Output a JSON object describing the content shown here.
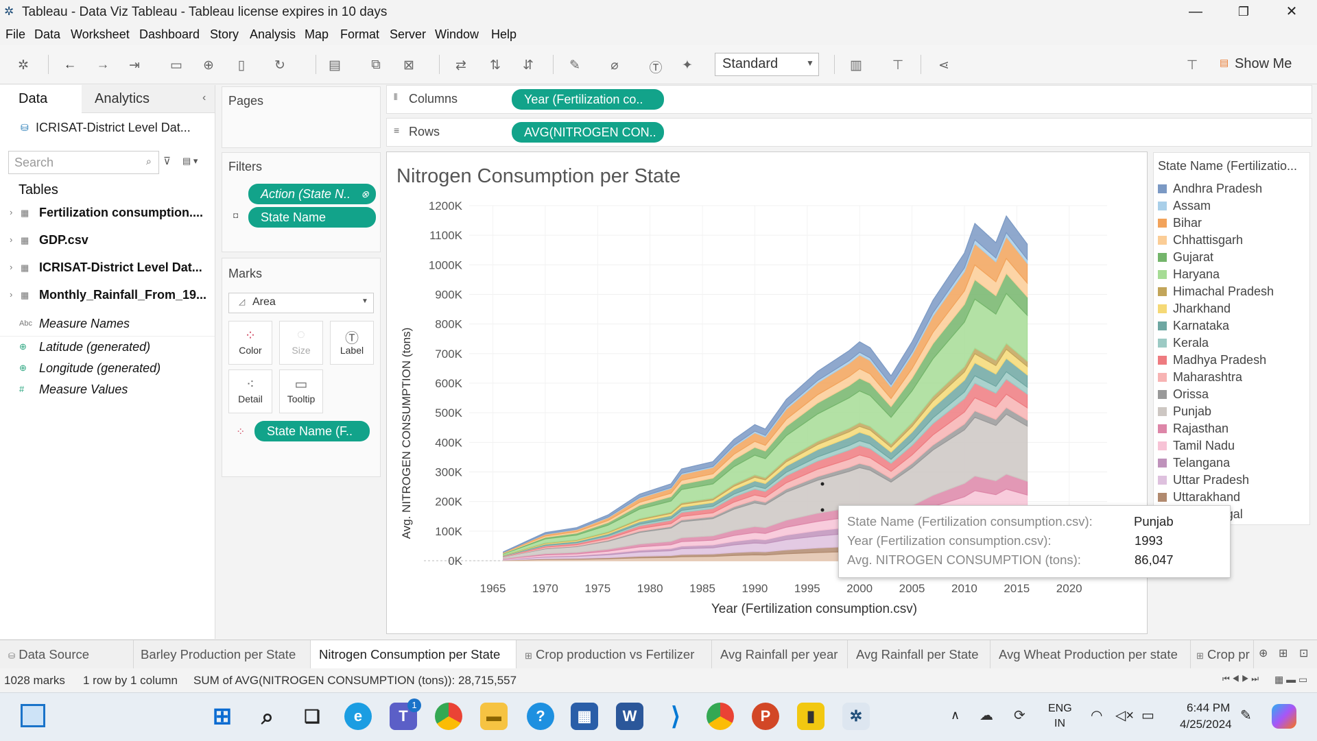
{
  "window": {
    "title": "Tableau - Data Viz Tableau - Tableau license expires in 10 days"
  },
  "menu": [
    "File",
    "Data",
    "Worksheet",
    "Dashboard",
    "Story",
    "Analysis",
    "Map",
    "Format",
    "Server",
    "Window",
    "Help"
  ],
  "toolbar": {
    "fit_select": "Standard",
    "show_me": "Show Me"
  },
  "data_pane": {
    "tab_data": "Data",
    "tab_analytics": "Analytics",
    "datasource": "ICRISAT-District Level Dat...",
    "search_placeholder": "Search",
    "tables_header": "Tables",
    "tables": [
      "Fertilization consumption....",
      "GDP.csv",
      "ICRISAT-District Level Dat...",
      "Monthly_Rainfall_From_19..."
    ],
    "fields": [
      {
        "icon": "Abc",
        "name": "Measure Names"
      },
      {
        "icon": "⊕",
        "name": "Latitude (generated)"
      },
      {
        "icon": "⊕",
        "name": "Longitude (generated)"
      },
      {
        "icon": "#",
        "name": "Measure Values"
      }
    ]
  },
  "pages": {
    "title": "Pages"
  },
  "filters": {
    "title": "Filters",
    "items": [
      "Action (State N..",
      "State Name"
    ]
  },
  "marks": {
    "title": "Marks",
    "type": "Area",
    "buttons": [
      "Color",
      "Size",
      "Label",
      "Detail",
      "Tooltip"
    ],
    "pill": "State Name (F.."
  },
  "shelves": {
    "columns_label": "Columns",
    "columns_pill": "Year (Fertilization co..",
    "rows_label": "Rows",
    "rows_pill": "AVG(NITROGEN CON.."
  },
  "chart_data": {
    "type": "area",
    "title": "Nitrogen Consumption per State",
    "xlabel": "Year (Fertilization consumption.csv)",
    "ylabel": "Avg. NITROGEN CONSUMPTION (tons)",
    "xlim": [
      1963,
      2021
    ],
    "ylim": [
      0,
      1200000
    ],
    "x_ticks": [
      "1965",
      "1970",
      "1975",
      "1980",
      "1985",
      "1990",
      "1995",
      "2000",
      "2005",
      "2010",
      "2015",
      "2020"
    ],
    "y_ticks": [
      "0K",
      "100K",
      "200K",
      "300K",
      "400K",
      "500K",
      "600K",
      "700K",
      "800K",
      "900K",
      "1000K",
      "1100K",
      "1200K"
    ],
    "stacked_total": [
      [
        1966,
        30000
      ],
      [
        1970,
        95000
      ],
      [
        1973,
        112000
      ],
      [
        1976,
        155000
      ],
      [
        1979,
        225000
      ],
      [
        1982,
        260000
      ],
      [
        1983,
        310000
      ],
      [
        1986,
        335000
      ],
      [
        1988,
        410000
      ],
      [
        1990,
        460000
      ],
      [
        1991,
        445000
      ],
      [
        1993,
        545000
      ],
      [
        1996,
        640000
      ],
      [
        1999,
        710000
      ],
      [
        2000,
        740000
      ],
      [
        2001,
        720000
      ],
      [
        2003,
        625000
      ],
      [
        2005,
        740000
      ],
      [
        2007,
        880000
      ],
      [
        2010,
        1040000
      ],
      [
        2011,
        1140000
      ],
      [
        2013,
        1075000
      ],
      [
        2014,
        1165000
      ],
      [
        2016,
        1070000
      ]
    ]
  },
  "legend": {
    "title": "State Name (Fertilizatio...",
    "items": [
      {
        "name": "Andhra Pradesh",
        "color": "#7b99c4"
      },
      {
        "name": "Assam",
        "color": "#a9cfe9"
      },
      {
        "name": "Bihar",
        "color": "#f2a35b"
      },
      {
        "name": "Chhattisgarh",
        "color": "#fbcd96"
      },
      {
        "name": "Gujarat",
        "color": "#74b56b"
      },
      {
        "name": "Haryana",
        "color": "#a6dc95"
      },
      {
        "name": "Himachal Pradesh",
        "color": "#c2a55a"
      },
      {
        "name": "Jharkhand",
        "color": "#f5d976"
      },
      {
        "name": "Karnataka",
        "color": "#6ea7a2"
      },
      {
        "name": "Kerala",
        "color": "#9ccac4"
      },
      {
        "name": "Madhya Pradesh",
        "color": "#ee7b80"
      },
      {
        "name": "Maharashtra",
        "color": "#f7b3b3"
      },
      {
        "name": "Orissa",
        "color": "#999999"
      },
      {
        "name": "Punjab",
        "color": "#cdc7c3"
      },
      {
        "name": "Rajasthan",
        "color": "#dd86a8"
      },
      {
        "name": "Tamil Nadu",
        "color": "#f7c3d6"
      },
      {
        "name": "Telangana",
        "color": "#bf92bb"
      },
      {
        "name": "Uttar Pradesh",
        "color": "#dec1de"
      },
      {
        "name": "Uttarakhand",
        "color": "#b18a6f"
      },
      {
        "name": "West Bengal",
        "color": "#e2c2ab"
      }
    ]
  },
  "tooltip": {
    "rows": [
      {
        "key": "State Name (Fertilization consumption.csv):",
        "value": "Punjab"
      },
      {
        "key": "Year (Fertilization consumption.csv):",
        "value": "1993"
      },
      {
        "key": "Avg. NITROGEN CONSUMPTION (tons):",
        "value": "86,047"
      }
    ]
  },
  "sheet_tabs": [
    "Data Source",
    "Barley Production per State",
    "Nitrogen Consumption per State",
    "Crop production vs Fertilizer",
    "Avg Rainfall per year",
    "Avg Rainfall per State",
    "Avg Wheat Production per state",
    "Crop pr"
  ],
  "status": {
    "marks": "1028 marks",
    "dims": "1 row by 1 column",
    "sum": "SUM of AVG(NITROGEN CONSUMPTION (tons)): 28,715,557"
  },
  "taskbar": {
    "lang1": "ENG",
    "lang2": "IN",
    "time": "6:44 PM",
    "date": "4/25/2024",
    "teams_badge": "1"
  }
}
